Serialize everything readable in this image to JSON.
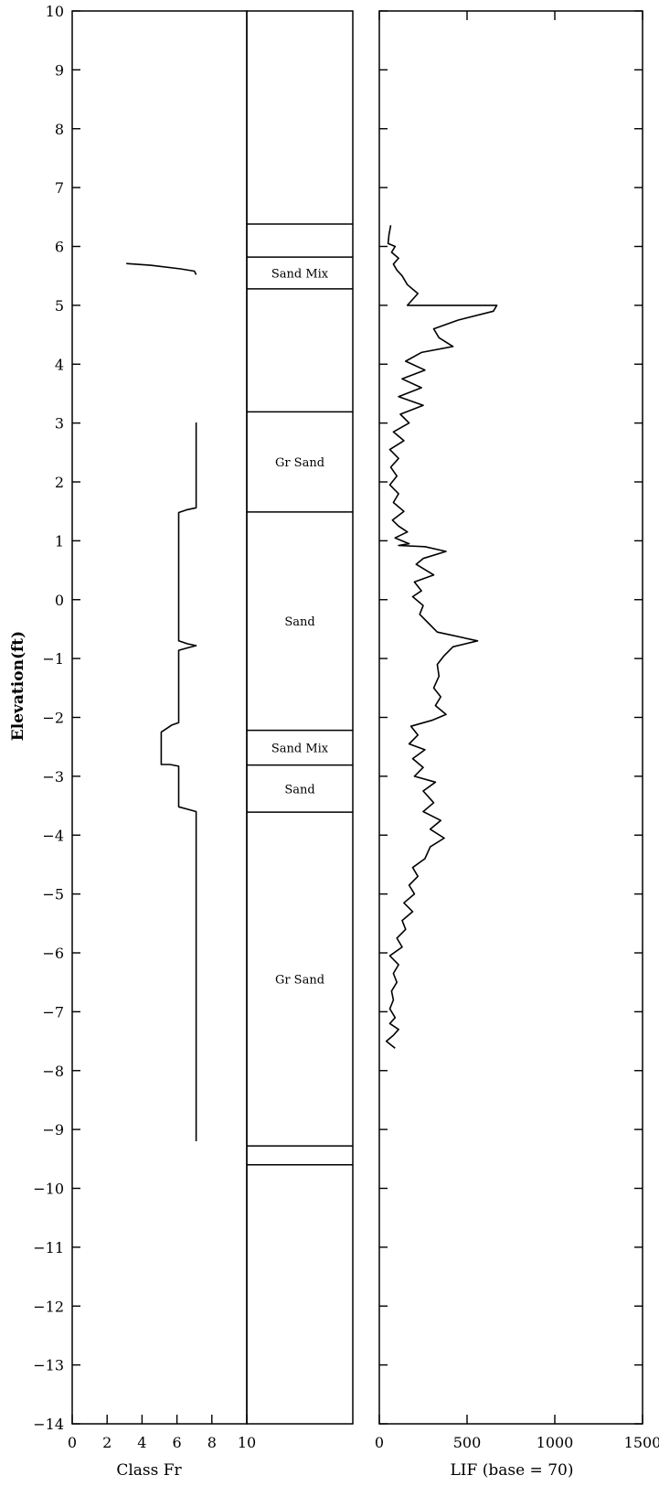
{
  "chart_data": [
    {
      "type": "line",
      "panel": "class",
      "ylabel": "Elevation(ft)",
      "xlabel": "Class Fr",
      "xlim": [
        0,
        10
      ],
      "ylim": [
        -14,
        10
      ],
      "xticks": [
        "0",
        "2",
        "4",
        "6",
        "8",
        "10"
      ],
      "yticks": [
        "10",
        "9",
        "8",
        "7",
        "6",
        "5",
        "4",
        "3",
        "2",
        "1",
        "0",
        "−1",
        "−2",
        "−3",
        "−4",
        "−5",
        "−6",
        "−7",
        "−8",
        "−9",
        "−10",
        "−11",
        "−12",
        "−13",
        "−14"
      ],
      "series": [
        {
          "points": [
            [
              3.1,
              5.71
            ],
            [
              4.5,
              5.68
            ],
            [
              6.2,
              5.62
            ],
            [
              7.0,
              5.58
            ],
            [
              7.1,
              5.52
            ]
          ]
        },
        {
          "points": [
            [
              7.1,
              3.01
            ],
            [
              7.1,
              1.56
            ],
            [
              6.6,
              1.53
            ],
            [
              6.1,
              1.48
            ],
            [
              6.1,
              -0.7
            ],
            [
              6.6,
              -0.75
            ],
            [
              7.1,
              -0.78
            ],
            [
              6.6,
              -0.82
            ],
            [
              6.1,
              -0.86
            ],
            [
              6.1,
              -2.09
            ],
            [
              5.7,
              -2.13
            ],
            [
              5.1,
              -2.25
            ],
            [
              5.1,
              -2.8
            ],
            [
              5.6,
              -2.8
            ],
            [
              6.1,
              -2.83
            ],
            [
              6.1,
              -3.52
            ],
            [
              6.6,
              -3.56
            ],
            [
              7.1,
              -3.6
            ],
            [
              7.1,
              -9.2
            ]
          ]
        }
      ]
    },
    {
      "type": "table",
      "panel": "lithology",
      "boundaries": [
        6.38,
        5.82,
        5.28,
        3.19,
        1.49,
        -2.22,
        -2.81,
        -3.61,
        -9.28,
        -9.6
      ],
      "layers": [
        {
          "label": "Sand Mix",
          "top": 5.82,
          "bottom": 5.28
        },
        {
          "label": "Gr Sand",
          "top": 3.19,
          "bottom": 1.49
        },
        {
          "label": "Sand",
          "top": 1.49,
          "bottom": -2.22
        },
        {
          "label": "Sand Mix",
          "top": -2.22,
          "bottom": -2.81
        },
        {
          "label": "Sand",
          "top": -2.81,
          "bottom": -3.61
        },
        {
          "label": "Gr Sand",
          "top": -3.61,
          "bottom": -9.28
        }
      ]
    },
    {
      "type": "line",
      "panel": "lif",
      "xlabel": "LIF (base = 70)",
      "xlim": [
        0,
        1500
      ],
      "ylim": [
        -14,
        10
      ],
      "xticks": [
        "0",
        "500",
        "1000",
        "1500"
      ],
      "series": [
        {
          "points": [
            [
              65,
              6.36
            ],
            [
              55,
              6.2
            ],
            [
              50,
              6.05
            ],
            [
              90,
              6.0
            ],
            [
              70,
              5.9
            ],
            [
              110,
              5.8
            ],
            [
              80,
              5.7
            ],
            [
              100,
              5.6
            ],
            [
              130,
              5.5
            ],
            [
              160,
              5.35
            ],
            [
              220,
              5.2
            ],
            [
              160,
              5.0
            ],
            [
              670,
              5.0
            ],
            [
              650,
              4.9
            ],
            [
              450,
              4.75
            ],
            [
              310,
              4.6
            ],
            [
              340,
              4.45
            ],
            [
              420,
              4.3
            ],
            [
              240,
              4.2
            ],
            [
              150,
              4.05
            ],
            [
              260,
              3.9
            ],
            [
              130,
              3.75
            ],
            [
              240,
              3.6
            ],
            [
              110,
              3.45
            ],
            [
              250,
              3.3
            ],
            [
              120,
              3.15
            ],
            [
              170,
              3.0
            ],
            [
              80,
              2.85
            ],
            [
              140,
              2.7
            ],
            [
              60,
              2.55
            ],
            [
              110,
              2.4
            ],
            [
              65,
              2.25
            ],
            [
              100,
              2.1
            ],
            [
              60,
              1.95
            ],
            [
              110,
              1.8
            ],
            [
              80,
              1.65
            ],
            [
              140,
              1.5
            ],
            [
              75,
              1.35
            ],
            [
              110,
              1.25
            ],
            [
              160,
              1.15
            ],
            [
              90,
              1.05
            ],
            [
              170,
              0.95
            ],
            [
              110,
              0.92
            ],
            [
              260,
              0.9
            ],
            [
              380,
              0.82
            ],
            [
              250,
              0.7
            ],
            [
              210,
              0.6
            ],
            [
              310,
              0.42
            ],
            [
              200,
              0.3
            ],
            [
              240,
              0.15
            ],
            [
              190,
              0.05
            ],
            [
              250,
              -0.1
            ],
            [
              230,
              -0.25
            ],
            [
              280,
              -0.4
            ],
            [
              330,
              -0.55
            ],
            [
              560,
              -0.7
            ],
            [
              420,
              -0.8
            ],
            [
              370,
              -0.95
            ],
            [
              330,
              -1.1
            ],
            [
              340,
              -1.3
            ],
            [
              310,
              -1.5
            ],
            [
              350,
              -1.65
            ],
            [
              320,
              -1.8
            ],
            [
              380,
              -1.95
            ],
            [
              300,
              -2.05
            ],
            [
              180,
              -2.15
            ],
            [
              220,
              -2.3
            ],
            [
              170,
              -2.45
            ],
            [
              260,
              -2.55
            ],
            [
              190,
              -2.7
            ],
            [
              250,
              -2.85
            ],
            [
              200,
              -3.0
            ],
            [
              320,
              -3.1
            ],
            [
              250,
              -3.25
            ],
            [
              310,
              -3.45
            ],
            [
              250,
              -3.6
            ],
            [
              350,
              -3.75
            ],
            [
              290,
              -3.9
            ],
            [
              370,
              -4.05
            ],
            [
              290,
              -4.2
            ],
            [
              260,
              -4.4
            ],
            [
              190,
              -4.55
            ],
            [
              220,
              -4.7
            ],
            [
              170,
              -4.85
            ],
            [
              200,
              -5.0
            ],
            [
              140,
              -5.15
            ],
            [
              190,
              -5.3
            ],
            [
              130,
              -5.45
            ],
            [
              150,
              -5.6
            ],
            [
              100,
              -5.75
            ],
            [
              130,
              -5.9
            ],
            [
              60,
              -6.05
            ],
            [
              110,
              -6.2
            ],
            [
              80,
              -6.35
            ],
            [
              100,
              -6.5
            ],
            [
              70,
              -6.65
            ],
            [
              80,
              -6.8
            ],
            [
              60,
              -6.95
            ],
            [
              90,
              -7.1
            ],
            [
              60,
              -7.2
            ],
            [
              110,
              -7.3
            ],
            [
              80,
              -7.4
            ],
            [
              40,
              -7.5
            ],
            [
              90,
              -7.62
            ]
          ]
        }
      ]
    }
  ]
}
